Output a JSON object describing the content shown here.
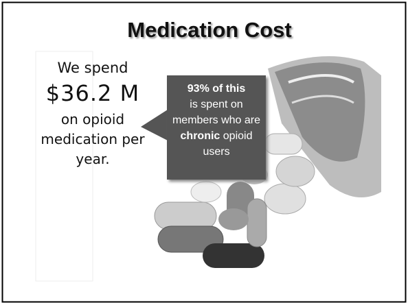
{
  "title": "Medication Cost",
  "left_text": {
    "intro": "We spend",
    "amount": "$36.2 M",
    "rest": "on opioid medication per year."
  },
  "callout": {
    "lead": "93% of this",
    "body_before": "is spent on members who are",
    "emphasis": "chronic",
    "body_after": "opioid users"
  }
}
